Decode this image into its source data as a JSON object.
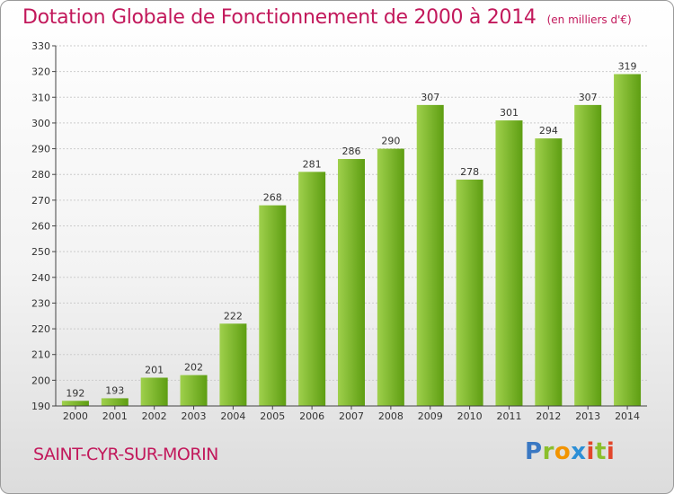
{
  "header": {
    "title": "Dotation Globale de Fonctionnement de 2000 à 2014",
    "subtitle": "(en milliers d'€)"
  },
  "footer": {
    "commune": "SAINT-CYR-SUR-MORIN",
    "logo_letters": [
      "P",
      "r",
      "o",
      "x",
      "i",
      "t",
      "i"
    ]
  },
  "colors": {
    "title": "#c2185b",
    "bar_light": "#9fd04c",
    "bar_dark": "#5e9e12",
    "axis": "#444444",
    "grid": "#cccccc",
    "text": "#333333"
  },
  "chart_data": {
    "type": "bar",
    "categories": [
      "2000",
      "2001",
      "2002",
      "2003",
      "2004",
      "2005",
      "2006",
      "2007",
      "2008",
      "2009",
      "2010",
      "2011",
      "2012",
      "2013",
      "2014"
    ],
    "values": [
      192,
      193,
      201,
      202,
      222,
      268,
      281,
      286,
      290,
      307,
      278,
      301,
      294,
      307,
      319
    ],
    "ylim": [
      190,
      330
    ],
    "yticks": [
      190,
      200,
      210,
      220,
      230,
      240,
      250,
      260,
      270,
      280,
      290,
      300,
      310,
      320,
      330
    ],
    "grid": "horizontal",
    "data_labels": true
  }
}
